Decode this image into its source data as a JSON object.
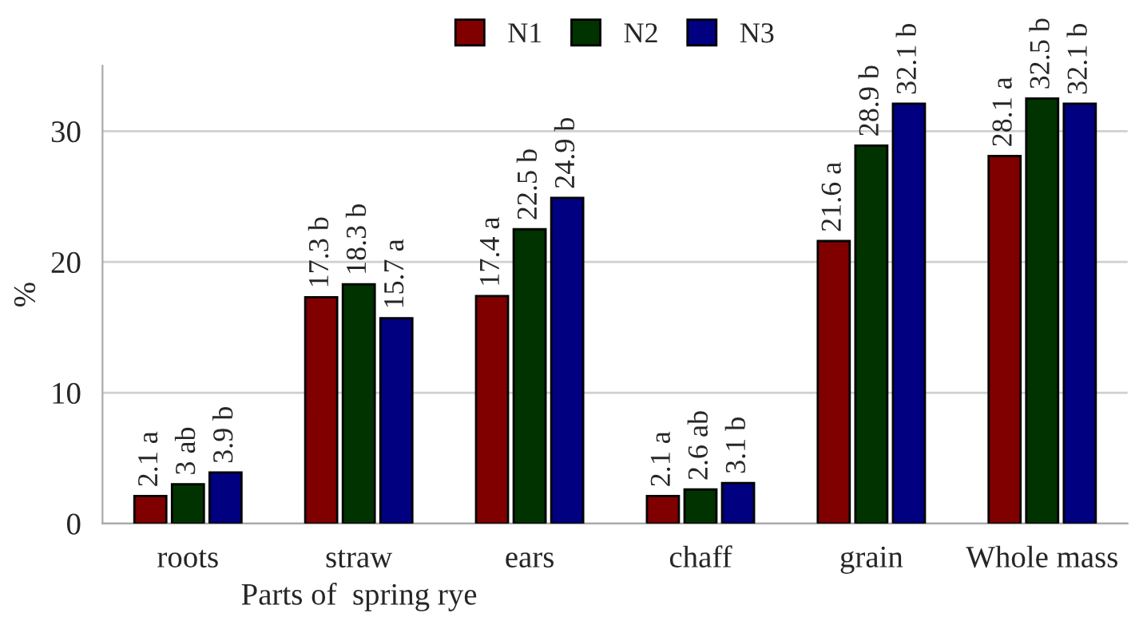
{
  "chart_data": {
    "type": "bar",
    "xlabel": "Parts of  spring rye",
    "ylabel": "%",
    "categories": [
      "roots",
      "straw",
      "ears",
      "chaff",
      "grain",
      "Whole mass"
    ],
    "series": [
      {
        "name": "N1",
        "color": "#800000",
        "values": [
          2.1,
          17.3,
          17.4,
          2.1,
          21.6,
          28.1
        ],
        "value_labels": [
          "2.1 a",
          "17.3 b",
          "17.4 a",
          "2.1 a",
          "21.6 a",
          "28.1 a"
        ]
      },
      {
        "name": "N2",
        "color": "#003300",
        "values": [
          3,
          18.3,
          22.5,
          2.6,
          28.9,
          32.5
        ],
        "value_labels": [
          "3 ab",
          "18.3 b",
          "22.5 b",
          "2.6 ab",
          "28.9 b",
          "32.5 b"
        ]
      },
      {
        "name": "N3",
        "color": "#000080",
        "values": [
          3.9,
          15.7,
          24.9,
          3.1,
          32.1,
          32.1
        ],
        "value_labels": [
          "3.9 b",
          "15.7 a",
          "24.9 b",
          "3.1 b",
          "32.1 b",
          "32.1 b"
        ]
      }
    ],
    "ylim": [
      0,
      35
    ],
    "yticks": [
      0,
      10,
      20,
      30
    ],
    "grid": "y",
    "legend": "top"
  }
}
